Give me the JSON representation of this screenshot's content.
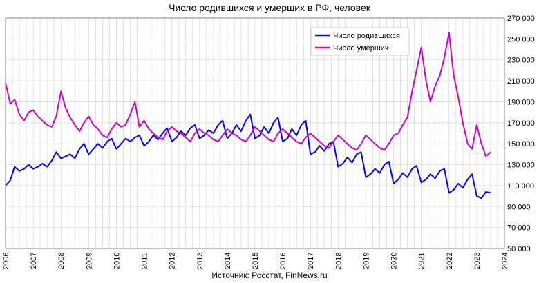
{
  "chart_data": {
    "type": "line",
    "title": "Число родившихся и умерших в РФ, человек",
    "source": "Источник: Росстат, FinNews.ru",
    "xlabel": "",
    "ylabel": "",
    "ylim": [
      50000,
      270000
    ],
    "xlim": [
      2006,
      2024
    ],
    "grid": true,
    "legend_position": "top-right",
    "x_ticks": [
      2006,
      2007,
      2008,
      2009,
      2010,
      2011,
      2012,
      2013,
      2014,
      2015,
      2016,
      2017,
      2018,
      2019,
      2020,
      2021,
      2022,
      2023,
      2024
    ],
    "x_tick_labels": [
      "2006",
      "2007",
      "2008",
      "2009",
      "2010",
      "2011",
      "2012",
      "2013",
      "2014",
      "2015",
      "2016",
      "2017",
      "2018",
      "2019",
      "2020",
      "2021",
      "2022",
      "2023",
      "2024"
    ],
    "y_ticks": [
      50000,
      70000,
      90000,
      110000,
      130000,
      150000,
      170000,
      190000,
      210000,
      230000,
      250000,
      270000
    ],
    "y_tick_labels": [
      "50 000",
      "70 000",
      "90 000",
      "110 000",
      "130 000",
      "150 000",
      "170 000",
      "190 000",
      "210 000",
      "230 000",
      "250 000",
      "270 000"
    ],
    "series": [
      {
        "name": "Число родившихся",
        "color": "#0000ff",
        "points": [
          [
            2006.0,
            110000
          ],
          [
            2006.17,
            115000
          ],
          [
            2006.33,
            128000
          ],
          [
            2006.5,
            124000
          ],
          [
            2006.67,
            126000
          ],
          [
            2006.83,
            130000
          ],
          [
            2007.0,
            126000
          ],
          [
            2007.17,
            128000
          ],
          [
            2007.33,
            131000
          ],
          [
            2007.5,
            128000
          ],
          [
            2007.67,
            134000
          ],
          [
            2007.83,
            142000
          ],
          [
            2008.0,
            136000
          ],
          [
            2008.17,
            138000
          ],
          [
            2008.33,
            140000
          ],
          [
            2008.5,
            136000
          ],
          [
            2008.67,
            145000
          ],
          [
            2008.83,
            150000
          ],
          [
            2009.0,
            140000
          ],
          [
            2009.17,
            145000
          ],
          [
            2009.33,
            150000
          ],
          [
            2009.5,
            146000
          ],
          [
            2009.67,
            152000
          ],
          [
            2009.83,
            155000
          ],
          [
            2010.0,
            145000
          ],
          [
            2010.17,
            150000
          ],
          [
            2010.33,
            155000
          ],
          [
            2010.5,
            152000
          ],
          [
            2010.67,
            156000
          ],
          [
            2010.83,
            158000
          ],
          [
            2011.0,
            148000
          ],
          [
            2011.17,
            152000
          ],
          [
            2011.33,
            158000
          ],
          [
            2011.5,
            154000
          ],
          [
            2011.67,
            160000
          ],
          [
            2011.83,
            165000
          ],
          [
            2012.0,
            152000
          ],
          [
            2012.17,
            156000
          ],
          [
            2012.33,
            162000
          ],
          [
            2012.5,
            158000
          ],
          [
            2012.67,
            165000
          ],
          [
            2012.83,
            168000
          ],
          [
            2013.0,
            155000
          ],
          [
            2013.17,
            158000
          ],
          [
            2013.33,
            163000
          ],
          [
            2013.5,
            160000
          ],
          [
            2013.67,
            168000
          ],
          [
            2013.83,
            172000
          ],
          [
            2014.0,
            155000
          ],
          [
            2014.17,
            160000
          ],
          [
            2014.33,
            168000
          ],
          [
            2014.5,
            162000
          ],
          [
            2014.67,
            172000
          ],
          [
            2014.83,
            178000
          ],
          [
            2015.0,
            155000
          ],
          [
            2015.17,
            158000
          ],
          [
            2015.33,
            166000
          ],
          [
            2015.5,
            160000
          ],
          [
            2015.67,
            170000
          ],
          [
            2015.83,
            175000
          ],
          [
            2016.0,
            152000
          ],
          [
            2016.17,
            155000
          ],
          [
            2016.33,
            164000
          ],
          [
            2016.5,
            158000
          ],
          [
            2016.67,
            168000
          ],
          [
            2016.83,
            172000
          ],
          [
            2017.0,
            140000
          ],
          [
            2017.17,
            142000
          ],
          [
            2017.33,
            148000
          ],
          [
            2017.5,
            143000
          ],
          [
            2017.67,
            150000
          ],
          [
            2017.83,
            152000
          ],
          [
            2018.0,
            128000
          ],
          [
            2018.17,
            131000
          ],
          [
            2018.33,
            137000
          ],
          [
            2018.5,
            132000
          ],
          [
            2018.67,
            140000
          ],
          [
            2018.83,
            142000
          ],
          [
            2019.0,
            118000
          ],
          [
            2019.17,
            121000
          ],
          [
            2019.33,
            126000
          ],
          [
            2019.5,
            122000
          ],
          [
            2019.67,
            130000
          ],
          [
            2019.83,
            133000
          ],
          [
            2020.0,
            112000
          ],
          [
            2020.17,
            116000
          ],
          [
            2020.33,
            122000
          ],
          [
            2020.5,
            118000
          ],
          [
            2020.67,
            126000
          ],
          [
            2020.83,
            129000
          ],
          [
            2021.0,
            113000
          ],
          [
            2021.17,
            116000
          ],
          [
            2021.33,
            121000
          ],
          [
            2021.5,
            117000
          ],
          [
            2021.67,
            124000
          ],
          [
            2021.83,
            126000
          ],
          [
            2022.0,
            103000
          ],
          [
            2022.17,
            106000
          ],
          [
            2022.33,
            112000
          ],
          [
            2022.5,
            108000
          ],
          [
            2022.67,
            116000
          ],
          [
            2022.83,
            121000
          ],
          [
            2023.0,
            100000
          ],
          [
            2023.17,
            98000
          ],
          [
            2023.33,
            104000
          ],
          [
            2023.5,
            103000
          ]
        ]
      },
      {
        "name": "Число умерших",
        "color": "#cc00cc",
        "points": [
          [
            2006.0,
            208000
          ],
          [
            2006.17,
            188000
          ],
          [
            2006.33,
            192000
          ],
          [
            2006.5,
            178000
          ],
          [
            2006.67,
            172000
          ],
          [
            2006.83,
            180000
          ],
          [
            2007.0,
            182000
          ],
          [
            2007.17,
            176000
          ],
          [
            2007.33,
            172000
          ],
          [
            2007.5,
            168000
          ],
          [
            2007.67,
            166000
          ],
          [
            2007.83,
            176000
          ],
          [
            2008.0,
            200000
          ],
          [
            2008.17,
            184000
          ],
          [
            2008.33,
            175000
          ],
          [
            2008.5,
            168000
          ],
          [
            2008.67,
            162000
          ],
          [
            2008.83,
            170000
          ],
          [
            2009.0,
            176000
          ],
          [
            2009.17,
            168000
          ],
          [
            2009.33,
            164000
          ],
          [
            2009.5,
            158000
          ],
          [
            2009.67,
            156000
          ],
          [
            2009.83,
            164000
          ],
          [
            2010.0,
            170000
          ],
          [
            2010.17,
            166000
          ],
          [
            2010.33,
            168000
          ],
          [
            2010.5,
            178000
          ],
          [
            2010.67,
            190000
          ],
          [
            2010.83,
            166000
          ],
          [
            2011.0,
            172000
          ],
          [
            2011.17,
            164000
          ],
          [
            2011.33,
            160000
          ],
          [
            2011.5,
            156000
          ],
          [
            2011.67,
            154000
          ],
          [
            2011.83,
            162000
          ],
          [
            2012.0,
            166000
          ],
          [
            2012.17,
            162000
          ],
          [
            2012.33,
            160000
          ],
          [
            2012.5,
            156000
          ],
          [
            2012.67,
            152000
          ],
          [
            2012.83,
            160000
          ],
          [
            2013.0,
            164000
          ],
          [
            2013.17,
            160000
          ],
          [
            2013.33,
            158000
          ],
          [
            2013.5,
            154000
          ],
          [
            2013.67,
            152000
          ],
          [
            2013.83,
            158000
          ],
          [
            2014.0,
            164000
          ],
          [
            2014.17,
            160000
          ],
          [
            2014.33,
            158000
          ],
          [
            2014.5,
            154000
          ],
          [
            2014.67,
            152000
          ],
          [
            2014.83,
            158000
          ],
          [
            2015.0,
            166000
          ],
          [
            2015.17,
            162000
          ],
          [
            2015.33,
            158000
          ],
          [
            2015.5,
            154000
          ],
          [
            2015.67,
            152000
          ],
          [
            2015.83,
            160000
          ],
          [
            2016.0,
            164000
          ],
          [
            2016.17,
            160000
          ],
          [
            2016.33,
            156000
          ],
          [
            2016.5,
            152000
          ],
          [
            2016.67,
            150000
          ],
          [
            2016.83,
            156000
          ],
          [
            2017.0,
            160000
          ],
          [
            2017.17,
            156000
          ],
          [
            2017.33,
            152000
          ],
          [
            2017.5,
            148000
          ],
          [
            2017.67,
            146000
          ],
          [
            2017.83,
            152000
          ],
          [
            2018.0,
            158000
          ],
          [
            2018.17,
            154000
          ],
          [
            2018.33,
            150000
          ],
          [
            2018.5,
            146000
          ],
          [
            2018.67,
            144000
          ],
          [
            2018.83,
            150000
          ],
          [
            2019.0,
            158000
          ],
          [
            2019.17,
            154000
          ],
          [
            2019.33,
            150000
          ],
          [
            2019.5,
            146000
          ],
          [
            2019.67,
            144000
          ],
          [
            2019.83,
            150000
          ],
          [
            2020.0,
            158000
          ],
          [
            2020.17,
            160000
          ],
          [
            2020.33,
            168000
          ],
          [
            2020.5,
            175000
          ],
          [
            2020.67,
            200000
          ],
          [
            2020.83,
            220000
          ],
          [
            2021.0,
            242000
          ],
          [
            2021.17,
            210000
          ],
          [
            2021.33,
            190000
          ],
          [
            2021.5,
            205000
          ],
          [
            2021.67,
            215000
          ],
          [
            2021.83,
            232000
          ],
          [
            2022.0,
            256000
          ],
          [
            2022.17,
            215000
          ],
          [
            2022.33,
            195000
          ],
          [
            2022.5,
            170000
          ],
          [
            2022.67,
            150000
          ],
          [
            2022.83,
            145000
          ],
          [
            2023.0,
            168000
          ],
          [
            2023.17,
            150000
          ],
          [
            2023.33,
            138000
          ],
          [
            2023.5,
            142000
          ]
        ]
      }
    ]
  }
}
